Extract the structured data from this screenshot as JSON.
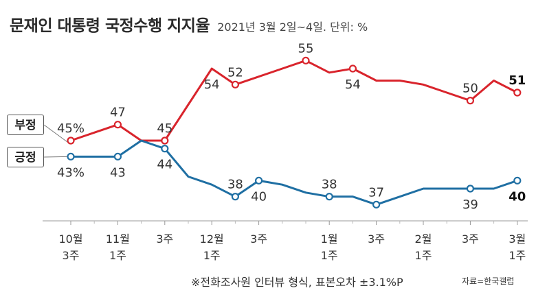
{
  "header": {
    "title": "문재인 대통령 국정수행 지지율",
    "subtitle": "2021년 3월 2일~4일. 단위: %"
  },
  "footer": {
    "note": "※전화조사원 인터뷰 형식, 표본오차 ±3.1%P",
    "source": "자료=한국갤럽"
  },
  "chart_data": {
    "type": "line",
    "title": "문재인 대통령 국정수행 지지율",
    "unit": "%",
    "ylim": [
      30,
      60
    ],
    "grid": false,
    "x_ticks": [
      {
        "pos": 0,
        "label": [
          "10월",
          "3주"
        ]
      },
      {
        "pos": 2,
        "label": [
          "11월",
          "1주"
        ]
      },
      {
        "pos": 4,
        "label": [
          "3주"
        ]
      },
      {
        "pos": 6,
        "label": [
          "12월",
          "1주"
        ]
      },
      {
        "pos": 8,
        "label": [
          "3주"
        ]
      },
      {
        "pos": 11,
        "label": [
          "1월",
          "1주"
        ]
      },
      {
        "pos": 13,
        "label": [
          "3주"
        ]
      },
      {
        "pos": 15,
        "label": [
          "2월",
          "1주"
        ]
      },
      {
        "pos": 17,
        "label": [
          "3주"
        ]
      },
      {
        "pos": 19,
        "label": [
          "3월",
          "1주"
        ]
      }
    ],
    "series": [
      {
        "name": "부정",
        "color": "#d9242c",
        "values": [
          45,
          46,
          47,
          45,
          45,
          49.5,
          54,
          52,
          53,
          54,
          55,
          53.5,
          54,
          52.5,
          52.5,
          52,
          51,
          50,
          52.5,
          51
        ],
        "markers": [
          {
            "i": 0,
            "label": "45%",
            "pos": "above"
          },
          {
            "i": 2,
            "label": "47",
            "pos": "above"
          },
          {
            "i": 4,
            "label": "45",
            "pos": "above"
          },
          {
            "i": 7,
            "label": "52",
            "pos": "above"
          },
          {
            "i": 10,
            "label": "55",
            "pos": "above"
          },
          {
            "i": 12,
            "label": "54",
            "pos": "below"
          },
          {
            "i": 17,
            "label": "50",
            "pos": "above"
          },
          {
            "i": 19,
            "label": "51",
            "pos": "above",
            "bold": true
          }
        ],
        "extra_labels": [
          {
            "i": 6,
            "label": "54",
            "pos": "below"
          }
        ]
      },
      {
        "name": "긍정",
        "color": "#1f6fa3",
        "values": [
          43,
          43,
          43,
          45,
          44,
          40.5,
          39.5,
          38,
          40,
          39.5,
          38.5,
          38,
          38,
          37,
          38,
          39,
          39,
          39,
          39,
          40
        ],
        "markers": [
          {
            "i": 0,
            "label": "43%",
            "pos": "below"
          },
          {
            "i": 2,
            "label": "43",
            "pos": "below"
          },
          {
            "i": 4,
            "label": "44",
            "pos": "below"
          },
          {
            "i": 7,
            "label": "38",
            "pos": "above"
          },
          {
            "i": 8,
            "label": "40",
            "pos": "below"
          },
          {
            "i": 11,
            "label": "38",
            "pos": "above"
          },
          {
            "i": 13,
            "label": "37",
            "pos": "above"
          },
          {
            "i": 17,
            "label": "39",
            "pos": "below"
          },
          {
            "i": 19,
            "label": "40",
            "pos": "below",
            "bold": true
          }
        ]
      }
    ]
  }
}
